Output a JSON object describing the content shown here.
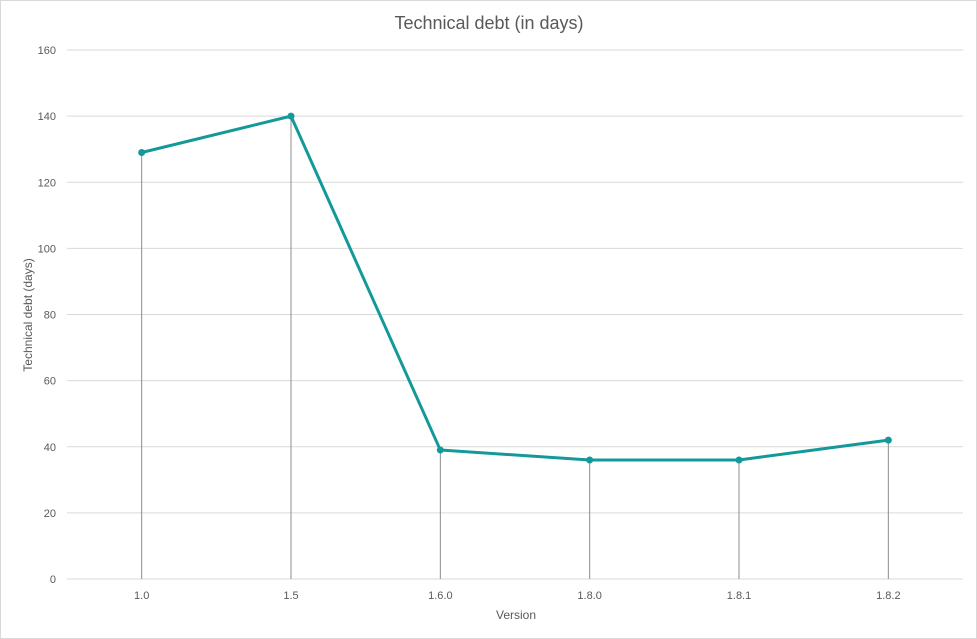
{
  "chart_data": {
    "type": "line",
    "title": "Technical debt (in days)",
    "xlabel": "Version",
    "ylabel": "Technical debt (days)",
    "categories": [
      "1.0",
      "1.5",
      "1.6.0",
      "1.8.0",
      "1.8.1",
      "1.8.2"
    ],
    "values": [
      129,
      140,
      39,
      36,
      36,
      42
    ],
    "ylim": [
      0,
      160
    ],
    "yticks": [
      "0",
      "20",
      "40",
      "60",
      "80",
      "100",
      "120",
      "140",
      "160"
    ],
    "grid": true,
    "drop_lines": true,
    "legend": "none",
    "colors": {
      "series": "#14999a",
      "grid": "#d9d9d9",
      "drop_lines": "#8c8c8c",
      "text": "#595959"
    }
  }
}
